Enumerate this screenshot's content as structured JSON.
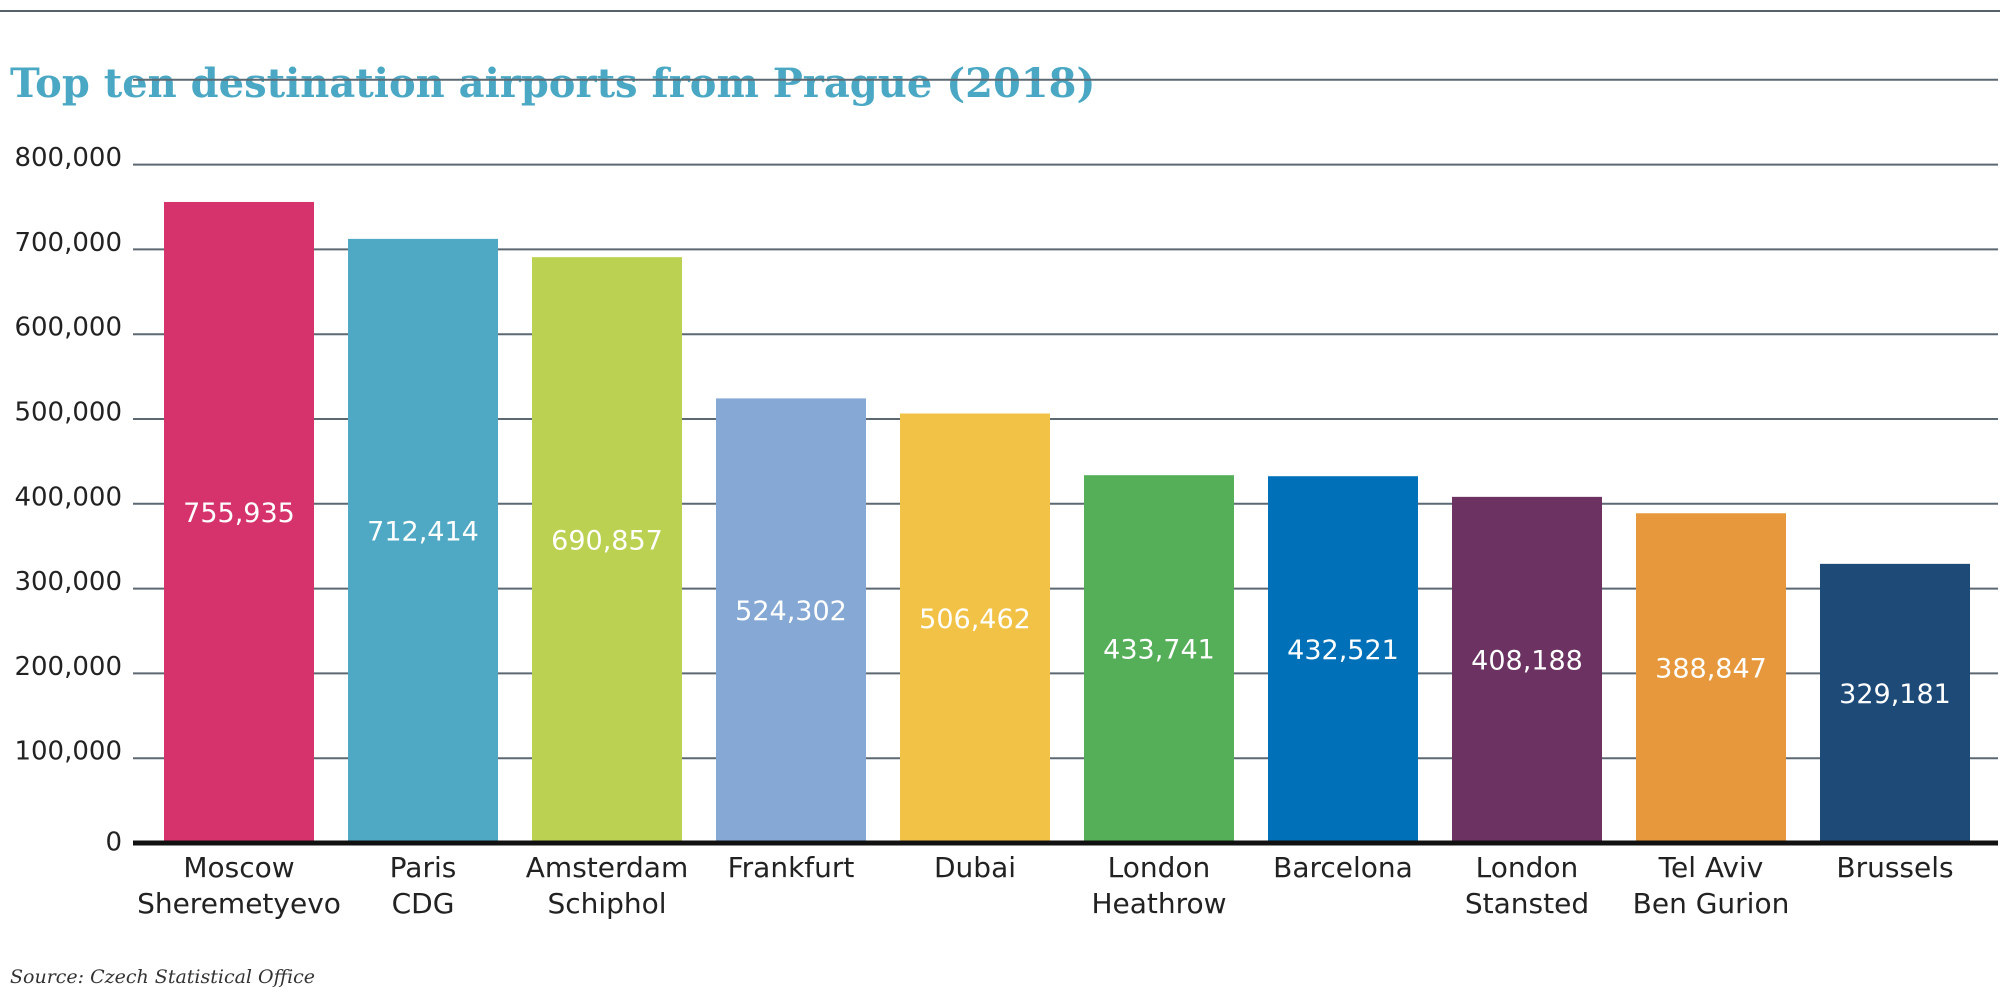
{
  "chart_data": {
    "type": "bar",
    "title": "Top ten destination airports from Prague (2018)",
    "source": "Source: Czech Statistical Office",
    "xlabel": "",
    "ylabel": "",
    "categories": [
      [
        "Moscow",
        "Sheremetyevo"
      ],
      [
        "Paris",
        "CDG"
      ],
      [
        "Amsterdam",
        "Schiphol"
      ],
      [
        "Frankfurt"
      ],
      [
        "Dubai"
      ],
      [
        "London",
        "Heathrow"
      ],
      [
        "Barcelona"
      ],
      [
        "London",
        "Stansted"
      ],
      [
        "Tel Aviv",
        "Ben Gurion"
      ],
      [
        "Brussels"
      ]
    ],
    "values": [
      755935,
      712414,
      690857,
      524302,
      506462,
      433741,
      432521,
      408188,
      388847,
      329181
    ],
    "value_labels": [
      "755,935",
      "712,414",
      "690,857",
      "524,302",
      "506,462",
      "433,741",
      "432,521",
      "408,188",
      "388,847",
      "329,181"
    ],
    "colors": [
      "#d6336c",
      "#4fa8c4",
      "#bad152",
      "#86a8d4",
      "#f2c246",
      "#55ae58",
      "#0070b8",
      "#6c3362",
      "#e8983c",
      "#1e4a78"
    ],
    "y_ticks": [
      0,
      100000,
      200000,
      300000,
      400000,
      500000,
      600000,
      700000,
      800000
    ],
    "y_tick_labels": [
      "0",
      "100,000",
      "200,000",
      "300,000",
      "400,000",
      "500,000",
      "600,000",
      "700,000",
      "800,000"
    ],
    "ylim": [
      0,
      800000
    ],
    "grid": true,
    "legend": "none"
  }
}
